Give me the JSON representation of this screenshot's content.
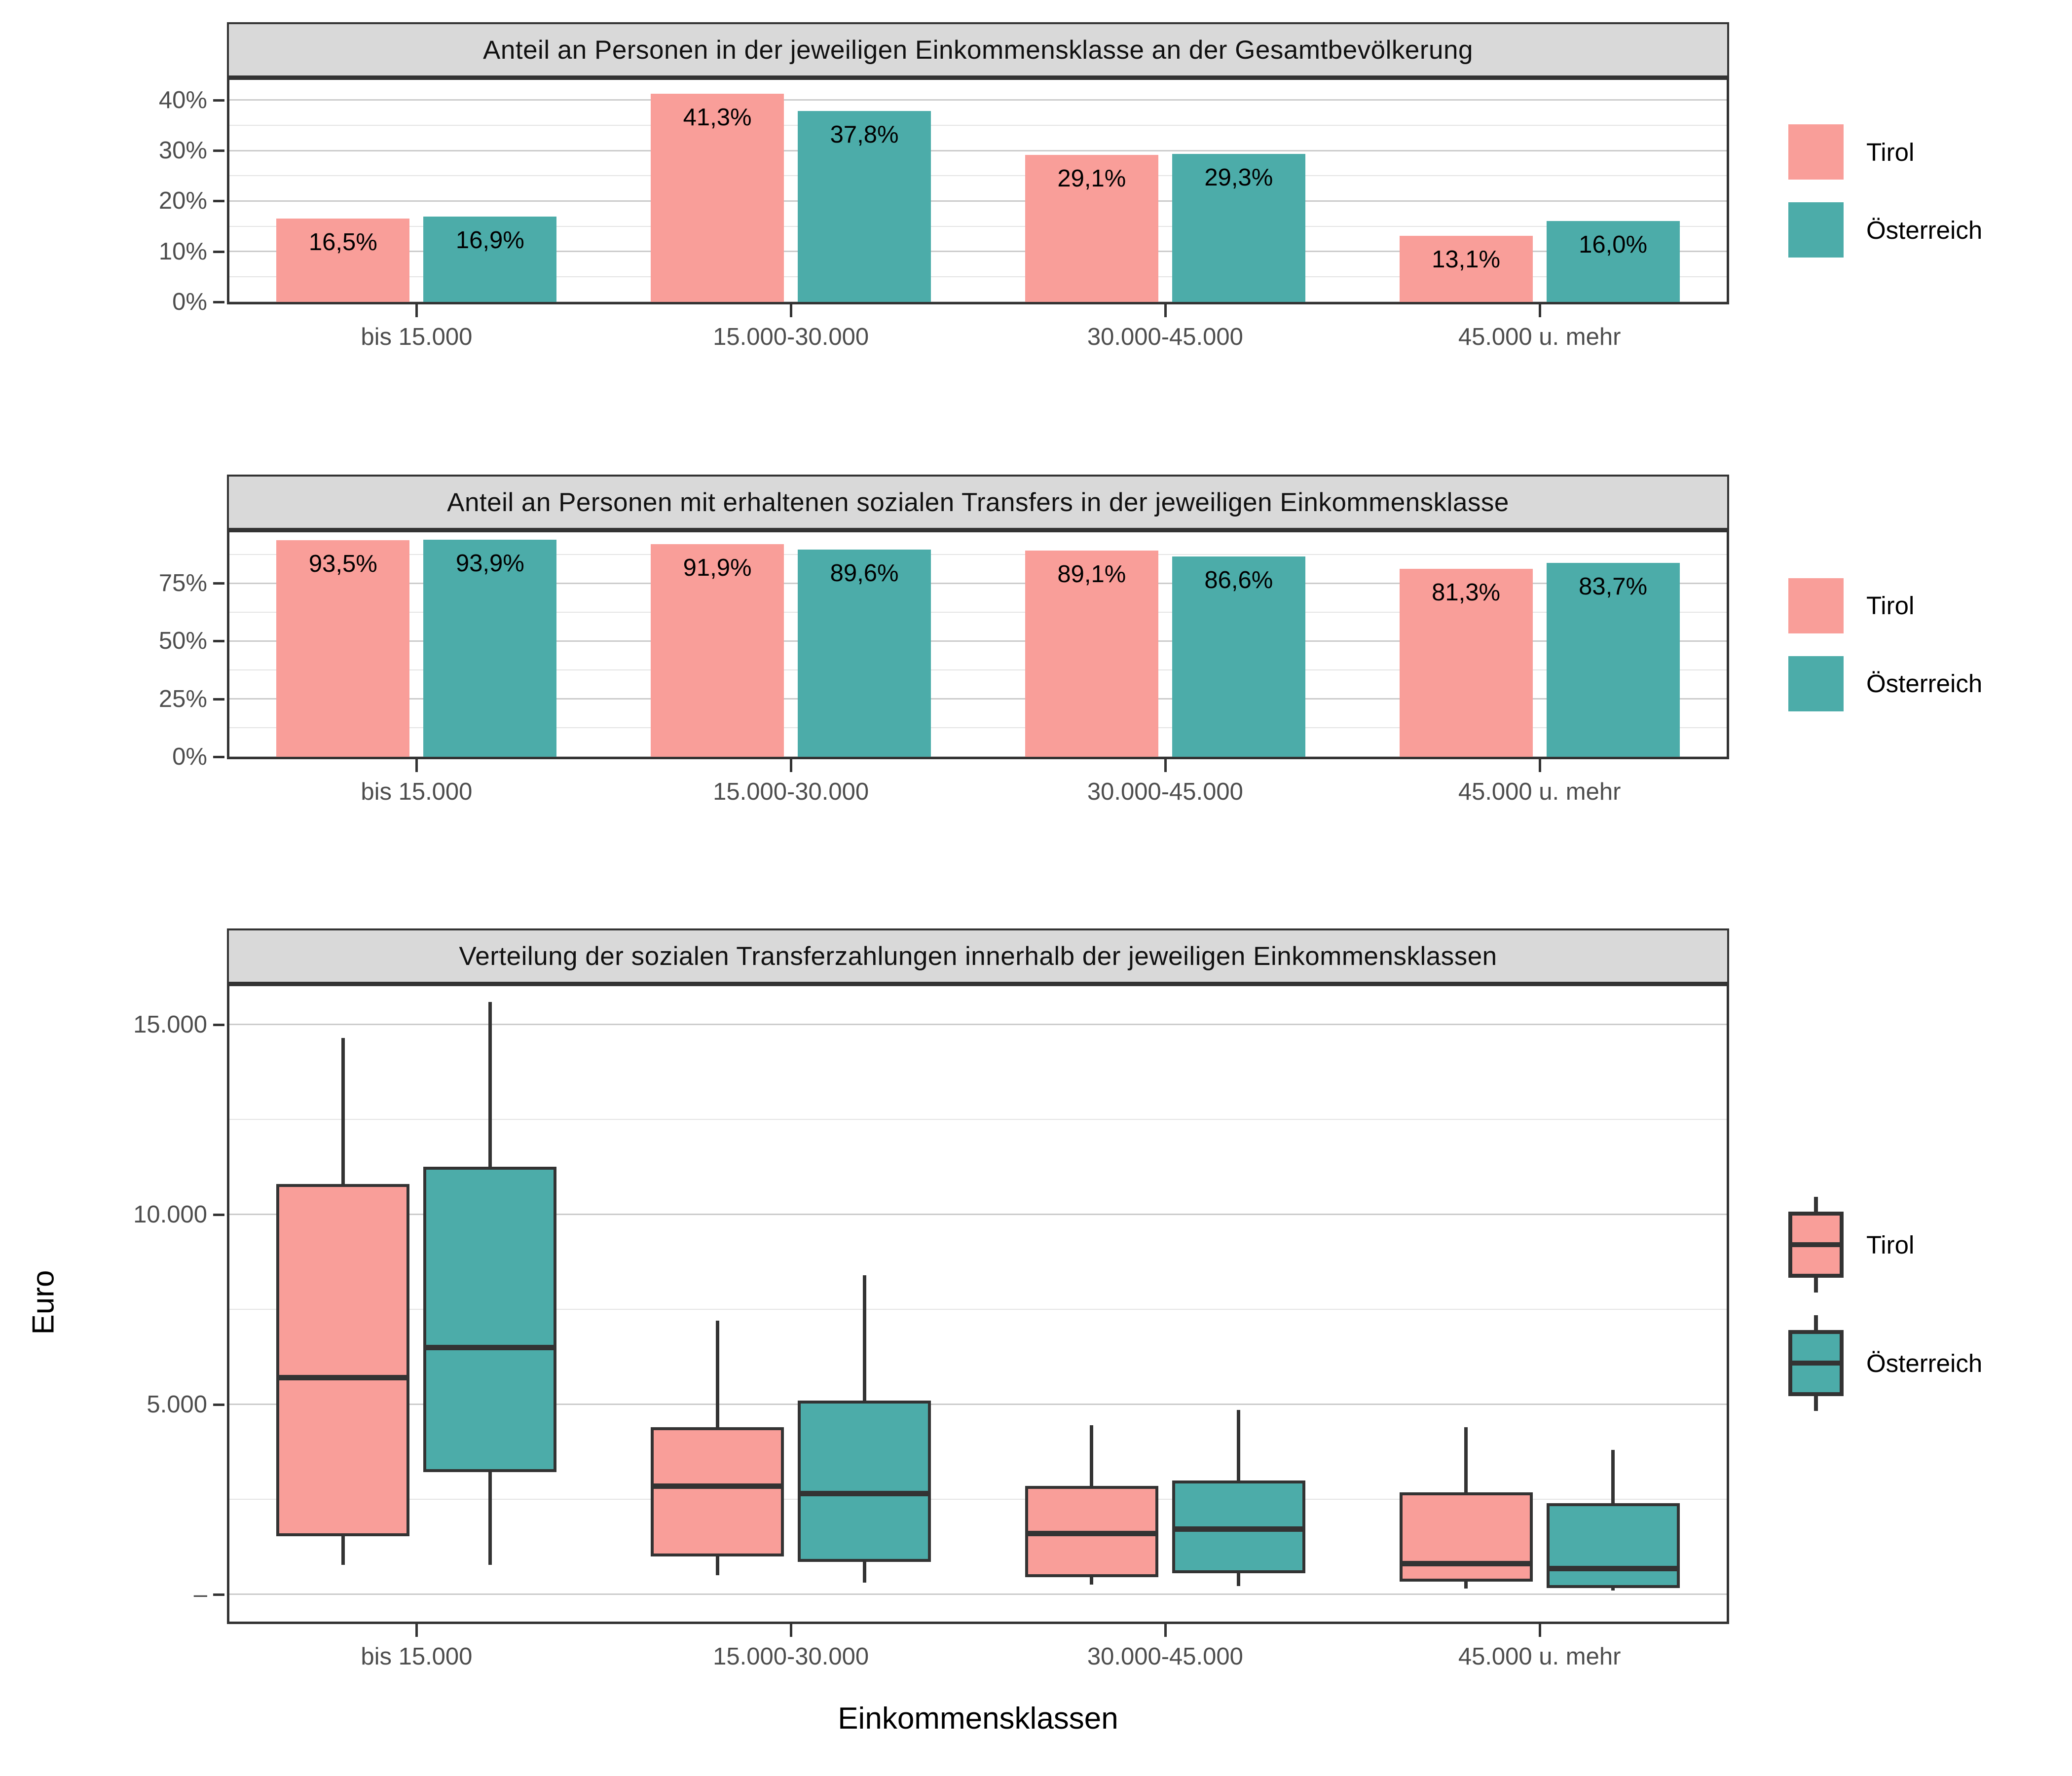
{
  "legend": {
    "tirol": "Tirol",
    "oesterreich": "Österreich"
  },
  "categories": [
    "bis 15.000",
    "15.000-30.000",
    "30.000-45.000",
    "45.000 u. mehr"
  ],
  "x_axis_title": "Einkommensklassen",
  "colors": {
    "tirol": "#F99E99",
    "oesterreich": "#4CACA9",
    "box_stroke": "#333333",
    "strip_bg": "#D9D9D9",
    "panel_border": "#333333",
    "grid_major": "#CBCBCB",
    "grid_minor": "#E4E4E4",
    "tick_text": "#4D4D4D"
  },
  "chart_data": [
    {
      "type": "bar",
      "title": "Anteil an Personen in der jeweiligen Einkommensklasse an der Gesamtbevölkerung",
      "categories": [
        "bis 15.000",
        "15.000-30.000",
        "30.000-45.000",
        "45.000 u. mehr"
      ],
      "series": [
        {
          "name": "Tirol",
          "color_key": "tirol",
          "values": [
            16.5,
            41.3,
            29.1,
            13.1
          ],
          "labels": [
            "16,5%",
            "41,3%",
            "29,1%",
            "13,1%"
          ]
        },
        {
          "name": "Österreich",
          "color_key": "oesterreich",
          "values": [
            16.9,
            37.8,
            29.3,
            16.0
          ],
          "labels": [
            "16,9%",
            "37,8%",
            "29,3%",
            "16,0%"
          ]
        }
      ],
      "ylim": [
        0,
        44
      ],
      "yticks": [
        {
          "v": 0,
          "label": "0%"
        },
        {
          "v": 10,
          "label": "10%"
        },
        {
          "v": 20,
          "label": "20%"
        },
        {
          "v": 30,
          "label": "30%"
        },
        {
          "v": 40,
          "label": "40%"
        }
      ],
      "minor_gridlines": [
        5,
        15,
        25,
        35
      ],
      "grid": true,
      "legend_position": "right"
    },
    {
      "type": "bar",
      "title": "Anteil an Personen mit erhaltenen sozialen Transfers in der jeweiligen Einkommensklasse",
      "categories": [
        "bis 15.000",
        "15.000-30.000",
        "30.000-45.000",
        "45.000 u. mehr"
      ],
      "series": [
        {
          "name": "Tirol",
          "color_key": "tirol",
          "values": [
            93.5,
            91.9,
            89.1,
            81.3
          ],
          "labels": [
            "93,5%",
            "91,9%",
            "89,1%",
            "81,3%"
          ]
        },
        {
          "name": "Österreich",
          "color_key": "oesterreich",
          "values": [
            93.9,
            89.6,
            86.6,
            83.7
          ],
          "labels": [
            "93,9%",
            "89,6%",
            "86,6%",
            "83,7%"
          ]
        }
      ],
      "ylim": [
        0,
        97
      ],
      "yticks": [
        {
          "v": 0,
          "label": "0%"
        },
        {
          "v": 25,
          "label": "25%"
        },
        {
          "v": 50,
          "label": "50%"
        },
        {
          "v": 75,
          "label": "75%"
        }
      ],
      "minor_gridlines": [
        12.5,
        37.5,
        62.5,
        87.5
      ],
      "grid": true,
      "legend_position": "right"
    },
    {
      "type": "boxplot",
      "title": "Verteilung der sozialen Transferzahlungen innerhalb der jeweiligen Einkommensklassen",
      "categories": [
        "bis 15.000",
        "15.000-30.000",
        "30.000-45.000",
        "45.000 u. mehr"
      ],
      "ylabel": "Euro",
      "xlabel": "Einkommensklassen",
      "series": [
        {
          "name": "Tirol",
          "color_key": "tirol",
          "boxes": [
            {
              "min": 780,
              "q1": 1530,
              "median": 5700,
              "q3": 10800,
              "max": 14650
            },
            {
              "min": 500,
              "q1": 1000,
              "median": 2850,
              "q3": 4400,
              "max": 7200
            },
            {
              "min": 260,
              "q1": 450,
              "median": 1600,
              "q3": 2850,
              "max": 4450
            },
            {
              "min": 150,
              "q1": 330,
              "median": 800,
              "q3": 2680,
              "max": 4400
            }
          ]
        },
        {
          "name": "Österreich",
          "color_key": "oesterreich",
          "boxes": [
            {
              "min": 780,
              "q1": 3220,
              "median": 6500,
              "q3": 11250,
              "max": 15600
            },
            {
              "min": 300,
              "q1": 850,
              "median": 2650,
              "q3": 5100,
              "max": 8400
            },
            {
              "min": 210,
              "q1": 550,
              "median": 1720,
              "q3": 3000,
              "max": 4850
            },
            {
              "min": 100,
              "q1": 160,
              "median": 680,
              "q3": 2400,
              "max": 3800
            }
          ]
        }
      ],
      "ylim": [
        -720,
        16010
      ],
      "yticks": [
        {
          "v": 0,
          "label": "–"
        },
        {
          "v": 5000,
          "label": "5.000"
        },
        {
          "v": 10000,
          "label": "10.000"
        },
        {
          "v": 15000,
          "label": "15.000"
        }
      ],
      "minor_gridlines": [
        2500,
        7500,
        12500
      ],
      "grid": true,
      "legend_position": "right"
    }
  ]
}
